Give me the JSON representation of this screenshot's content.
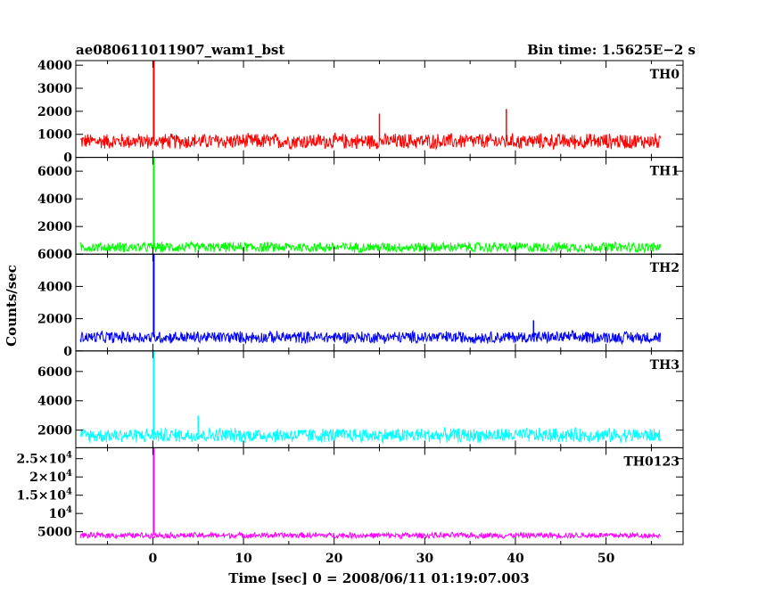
{
  "header": {
    "title": "ae080611011907_wam1_bst",
    "bin_time": "Bin time: 1.5625E−2 s"
  },
  "chart_data": {
    "type": "line",
    "xlabel": "Time [sec] 0 = 2008/06/11 01:19:07.003",
    "ylabel": "Counts/sec",
    "xlim": [
      -8.5,
      58.5
    ],
    "x_ticks": [
      0,
      10,
      20,
      30,
      40,
      50
    ],
    "x_tick_labels": [
      "0",
      "10",
      "20",
      "30",
      "40",
      "50"
    ],
    "x_start": -8,
    "x_end": 56,
    "spike_x": 0.1,
    "grid": false,
    "panels": [
      {
        "name": "TH0",
        "color": "#ff0000",
        "ylim": [
          0,
          4200
        ],
        "ticks": [
          0,
          1000,
          2000,
          3000,
          4000
        ],
        "tick_labels": [
          "0",
          "1000",
          "2000",
          "3000",
          "4000"
        ],
        "baseline": 700,
        "noise": 380,
        "peak": 4200,
        "extra_peaks": [
          {
            "x": 39,
            "v": 2100
          },
          {
            "x": 25,
            "v": 1900
          }
        ]
      },
      {
        "name": "TH1",
        "color": "#00ff00",
        "ylim": [
          0,
          7000
        ],
        "ticks": [
          0,
          2000,
          4000,
          6000
        ],
        "tick_labels": [
          "0",
          "2000",
          "4000",
          "6000"
        ],
        "baseline": 500,
        "noise": 420,
        "peak": 7000,
        "extra_peaks": []
      },
      {
        "name": "TH2",
        "color": "#0000ff",
        "ylim": [
          0,
          6000
        ],
        "ticks": [
          0,
          2000,
          4000,
          6000
        ],
        "tick_labels": [
          "0",
          "2000",
          "4000",
          "6000"
        ],
        "baseline": 850,
        "noise": 420,
        "peak": 6000,
        "extra_peaks": [
          {
            "x": 42,
            "v": 1900
          }
        ]
      },
      {
        "name": "TH3",
        "color": "#00ffff",
        "ylim": [
          800,
          7400
        ],
        "ticks": [
          2000,
          4000,
          6000
        ],
        "tick_labels": [
          "2000",
          "4000",
          "6000"
        ],
        "baseline": 1650,
        "noise": 560,
        "peak": 7400,
        "extra_peaks": [
          {
            "x": 5,
            "v": 3000
          }
        ]
      },
      {
        "name": "TH0123",
        "color": "#ff00ff",
        "ylim": [
          1500,
          28000
        ],
        "ticks": [
          5000,
          10000,
          15000,
          20000,
          25000
        ],
        "tick_labels": [
          "5000",
          "10^4",
          "1.5×10^4",
          "2×10^4",
          "2.5×10^4"
        ],
        "baseline": 4000,
        "noise": 900,
        "peak": 28000,
        "extra_peaks": []
      }
    ]
  }
}
